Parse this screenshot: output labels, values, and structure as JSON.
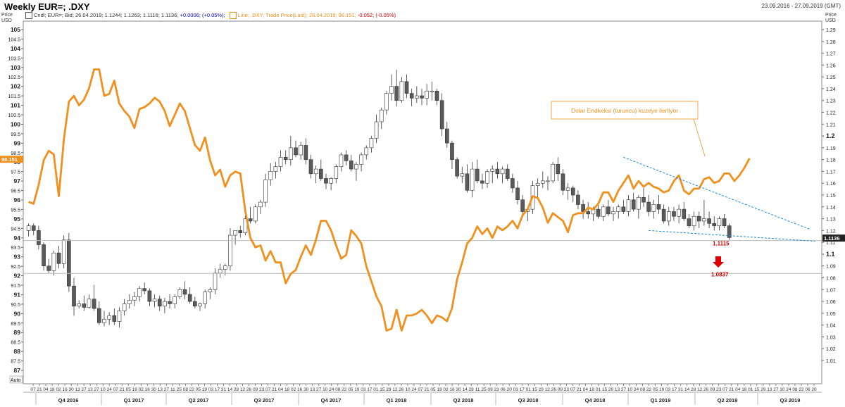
{
  "header": {
    "title": "Weekly EUR=; .DXY",
    "date_range": "23.09.2016 - 27.09.2019 (GMT)"
  },
  "legend": {
    "cndl_label": "Cndl; EUR=; Bid; 26.04.2019; 1.1244; 1.1263; 1.1116; 1.1136;",
    "cndl_change": "+0.0006; (+0.05%);",
    "line_label": "Line; .DXY; Trade Price(Last); 26.04.2019; 98.151;",
    "line_change": "-0.052; (-0.05%)"
  },
  "colors": {
    "dxy_line": "#f0901e",
    "trend_line": "#1c8ad8",
    "bear_candle": "#5a5a5a",
    "target_text": "#cc0000",
    "annotation_text": "#f0901e"
  },
  "chart_data": {
    "type": "candlestick",
    "left_axis": {
      "label": "Price\nUSD",
      "range": [
        86.5,
        105.5
      ],
      "ticks": [
        "87",
        "87.5",
        "88",
        "88.5",
        "89",
        "89.5",
        "90",
        "90.5",
        "91",
        "91.5",
        "92",
        "92.5",
        "93",
        "93.5",
        "94",
        "94.5",
        "95",
        "95.5",
        "96",
        "96.5",
        "97",
        "97.5",
        "98",
        "98.5",
        "99",
        "99.5",
        "100",
        "100.5",
        "101",
        "101.5",
        "102",
        "102.5",
        "103",
        "103.5",
        "104",
        "104.5",
        "105"
      ],
      "current_value_label": "98.151"
    },
    "right_axis": {
      "label": "Price\nUSD",
      "range": [
        0.995,
        1.294
      ],
      "ticks": [
        "1.01",
        "1.02",
        "1.03",
        "1.04",
        "1.05",
        "1.06",
        "1.07",
        "1.08",
        "1.09",
        "1.1",
        "1.11",
        "1.12",
        "1.13",
        "1.14",
        "1.15",
        "1.16",
        "1.17",
        "1.18",
        "1.19",
        "1.2",
        "1.21",
        "1.22",
        "1.23",
        "1.24",
        "1.25",
        "1.26",
        "1.27",
        "1.28",
        "1.29"
      ],
      "current_value_label": "1.1136"
    },
    "x_axis": {
      "day_ticks": [
        "07",
        "21",
        "04",
        "18",
        "02",
        "16",
        "30",
        "13",
        "27",
        "13",
        "27",
        "10",
        "24",
        "07",
        "21",
        "05",
        "19",
        "02",
        "16",
        "30",
        "13",
        "27",
        "11",
        "25",
        "08",
        "22",
        "05",
        "19",
        "03",
        "17",
        "31",
        "14",
        "28",
        "12",
        "26",
        "09",
        "23",
        "07",
        "21",
        "04",
        "18",
        "02",
        "16",
        "30",
        "13",
        "27",
        "10",
        "24",
        "08",
        "22",
        "05",
        "19",
        "03",
        "17",
        "01",
        "15",
        "29",
        "12",
        "26",
        "10",
        "24",
        "07",
        "21",
        "05",
        "19",
        "02",
        "16",
        "30",
        "14",
        "28",
        "11",
        "25",
        "09",
        "23",
        "06",
        "20",
        "03",
        "17",
        "01",
        "15",
        "29",
        "12",
        "26",
        "09",
        "23",
        "07",
        "21",
        "04",
        "18",
        "01",
        "15",
        "29",
        "13",
        "27",
        "10",
        "24",
        "08",
        "22",
        "05",
        "19",
        "03",
        "17",
        "31",
        "14",
        "28",
        "12",
        "26",
        "09",
        "23",
        "07",
        "21",
        "04",
        "18",
        "01",
        "15",
        "29",
        "13",
        "27",
        "10",
        "24",
        "08",
        "22",
        "06",
        "20"
      ],
      "quarters": [
        "Q4 2016",
        "Q1 2017",
        "Q2 2017",
        "Q3 2017",
        "Q4 2017",
        "Q1 2018",
        "Q2 2018",
        "Q3 2018",
        "Q4 2018",
        "Q1 2019",
        "Q2 2019",
        "Q3 2019"
      ]
    },
    "dxy_series": [
      95.9,
      95.8,
      96.8,
      98.1,
      98.6,
      98.4,
      96.2,
      99.2,
      101.2,
      101.5,
      101.0,
      101.3,
      101.9,
      102.9,
      102.9,
      101.5,
      101.6,
      102.3,
      101.1,
      100.7,
      100.4,
      99.8,
      100.8,
      100.9,
      101.1,
      101.4,
      101.2,
      100.7,
      99.9,
      100.5,
      101.1,
      100.7,
      99.8,
      98.9,
      98.6,
      99.3,
      98.1,
      97.3,
      97.6,
      96.7,
      97.3,
      97.5,
      97.4,
      95.4,
      94.0,
      93.5,
      93.6,
      92.8,
      93.3,
      92.7,
      92.7,
      91.6,
      92.1,
      92.3,
      93.0,
      93.6,
      93.1,
      93.9,
      94.9,
      94.9,
      94.4,
      93.6,
      92.9,
      93.1,
      94.4,
      94.1,
      93.7,
      92.5,
      91.7,
      90.9,
      90.4,
      89.1,
      89.2,
      90.2,
      89.1,
      89.9,
      89.9,
      90.0,
      90.2,
      89.9,
      89.5,
      89.9,
      89.8,
      89.6,
      90.3,
      91.8,
      92.7,
      93.7,
      94.0,
      94.6,
      94.2,
      94.5,
      94.0,
      94.6,
      94.4,
      94.6,
      94.9,
      94.5,
      95.2,
      95.5,
      96.2,
      96.1,
      95.6,
      94.8,
      95.3,
      95.1,
      94.9,
      94.3,
      95.2,
      95.3,
      95.3,
      95.6,
      95.5,
      95.8,
      96.4,
      96.4,
      95.9,
      96.5,
      96.9,
      97.3,
      96.6,
      97.0,
      96.7,
      96.9,
      96.7,
      96.6,
      96.4,
      96.5,
      97.0,
      97.3,
      96.5,
      96.3,
      96.6,
      96.6,
      97.1,
      97.2,
      96.9,
      97.0,
      97.4,
      97.4,
      97.0,
      97.3,
      97.7,
      98.2
    ],
    "eurusd_candles": [
      [
        1.12,
        1.126,
        1.115,
        1.124
      ],
      [
        1.124,
        1.126,
        1.116,
        1.12
      ],
      [
        1.12,
        1.124,
        1.104,
        1.108
      ],
      [
        1.108,
        1.11,
        1.086,
        1.09
      ],
      [
        1.09,
        1.096,
        1.084,
        1.086
      ],
      [
        1.086,
        1.103,
        1.082,
        1.101
      ],
      [
        1.101,
        1.107,
        1.088,
        1.092
      ],
      [
        1.092,
        1.116,
        1.088,
        1.112
      ],
      [
        1.112,
        1.118,
        1.068,
        1.073
      ],
      [
        1.073,
        1.08,
        1.048,
        1.056
      ],
      [
        1.056,
        1.061,
        1.054,
        1.058
      ],
      [
        1.058,
        1.065,
        1.052,
        1.055
      ],
      [
        1.055,
        1.066,
        1.054,
        1.062
      ],
      [
        1.062,
        1.074,
        1.052,
        1.054
      ],
      [
        1.054,
        1.06,
        1.04,
        1.042
      ],
      [
        1.042,
        1.052,
        1.039,
        1.045
      ],
      [
        1.045,
        1.051,
        1.04,
        1.048
      ],
      [
        1.048,
        1.054,
        1.04,
        1.043
      ],
      [
        1.043,
        1.055,
        1.038,
        1.052
      ],
      [
        1.052,
        1.062,
        1.048,
        1.058
      ],
      [
        1.058,
        1.066,
        1.054,
        1.061
      ],
      [
        1.061,
        1.068,
        1.056,
        1.064
      ],
      [
        1.064,
        1.073,
        1.06,
        1.071
      ],
      [
        1.071,
        1.076,
        1.066,
        1.069
      ],
      [
        1.069,
        1.071,
        1.056,
        1.06
      ],
      [
        1.06,
        1.066,
        1.055,
        1.062
      ],
      [
        1.062,
        1.065,
        1.052,
        1.056
      ],
      [
        1.056,
        1.063,
        1.05,
        1.06
      ],
      [
        1.06,
        1.066,
        1.054,
        1.058
      ],
      [
        1.058,
        1.066,
        1.054,
        1.064
      ],
      [
        1.064,
        1.072,
        1.062,
        1.07
      ],
      [
        1.07,
        1.077,
        1.062,
        1.066
      ],
      [
        1.066,
        1.072,
        1.058,
        1.06
      ],
      [
        1.06,
        1.064,
        1.054,
        1.056
      ],
      [
        1.056,
        1.059,
        1.052,
        1.058
      ],
      [
        1.058,
        1.07,
        1.054,
        1.068
      ],
      [
        1.068,
        1.072,
        1.062,
        1.07
      ],
      [
        1.07,
        1.088,
        1.066,
        1.084
      ],
      [
        1.084,
        1.092,
        1.08,
        1.087
      ],
      [
        1.087,
        1.092,
        1.082,
        1.09
      ],
      [
        1.09,
        1.122,
        1.086,
        1.116
      ],
      [
        1.116,
        1.12,
        1.108,
        1.12
      ],
      [
        1.12,
        1.124,
        1.114,
        1.118
      ],
      [
        1.118,
        1.135,
        1.116,
        1.13
      ],
      [
        1.13,
        1.14,
        1.126,
        1.128
      ],
      [
        1.128,
        1.142,
        1.126,
        1.14
      ],
      [
        1.14,
        1.146,
        1.134,
        1.144
      ],
      [
        1.144,
        1.168,
        1.14,
        1.163
      ],
      [
        1.163,
        1.177,
        1.158,
        1.17
      ],
      [
        1.17,
        1.178,
        1.164,
        1.174
      ],
      [
        1.174,
        1.188,
        1.17,
        1.182
      ],
      [
        1.182,
        1.188,
        1.176,
        1.18
      ],
      [
        1.18,
        1.2,
        1.175,
        1.19
      ],
      [
        1.19,
        1.196,
        1.182,
        1.184
      ],
      [
        1.184,
        1.195,
        1.18,
        1.192
      ],
      [
        1.192,
        1.198,
        1.176,
        1.18
      ],
      [
        1.18,
        1.184,
        1.164,
        1.168
      ],
      [
        1.168,
        1.175,
        1.16,
        1.172
      ],
      [
        1.172,
        1.18,
        1.162,
        1.164
      ],
      [
        1.164,
        1.168,
        1.155,
        1.16
      ],
      [
        1.16,
        1.165,
        1.154,
        1.164
      ],
      [
        1.164,
        1.176,
        1.16,
        1.174
      ],
      [
        1.174,
        1.186,
        1.17,
        1.184
      ],
      [
        1.184,
        1.188,
        1.175,
        1.179
      ],
      [
        1.179,
        1.184,
        1.17,
        1.172
      ],
      [
        1.172,
        1.178,
        1.162,
        1.176
      ],
      [
        1.176,
        1.186,
        1.17,
        1.184
      ],
      [
        1.184,
        1.192,
        1.18,
        1.19
      ],
      [
        1.19,
        1.2,
        1.186,
        1.198
      ],
      [
        1.198,
        1.218,
        1.194,
        1.212
      ],
      [
        1.212,
        1.224,
        1.206,
        1.222
      ],
      [
        1.222,
        1.238,
        1.218,
        1.236
      ],
      [
        1.236,
        1.252,
        1.23,
        1.242
      ],
      [
        1.242,
        1.256,
        1.225,
        1.23
      ],
      [
        1.23,
        1.25,
        1.228,
        1.246
      ],
      [
        1.246,
        1.252,
        1.232,
        1.236
      ],
      [
        1.236,
        1.24,
        1.225,
        1.232
      ],
      [
        1.232,
        1.242,
        1.228,
        1.234
      ],
      [
        1.234,
        1.24,
        1.226,
        1.232
      ],
      [
        1.232,
        1.244,
        1.226,
        1.238
      ],
      [
        1.238,
        1.246,
        1.23,
        1.238
      ],
      [
        1.238,
        1.24,
        1.226,
        1.23
      ],
      [
        1.23,
        1.236,
        1.2,
        1.206
      ],
      [
        1.206,
        1.212,
        1.19,
        1.194
      ],
      [
        1.194,
        1.196,
        1.172,
        1.18
      ],
      [
        1.18,
        1.182,
        1.164,
        1.166
      ],
      [
        1.166,
        1.174,
        1.16,
        1.168
      ],
      [
        1.168,
        1.176,
        1.152,
        1.154
      ],
      [
        1.154,
        1.178,
        1.148,
        1.172
      ],
      [
        1.172,
        1.18,
        1.16,
        1.162
      ],
      [
        1.162,
        1.168,
        1.155,
        1.16
      ],
      [
        1.16,
        1.172,
        1.156,
        1.17
      ],
      [
        1.17,
        1.175,
        1.16,
        1.172
      ],
      [
        1.172,
        1.178,
        1.164,
        1.168
      ],
      [
        1.168,
        1.174,
        1.16,
        1.172
      ],
      [
        1.172,
        1.176,
        1.162,
        1.164
      ],
      [
        1.164,
        1.168,
        1.152,
        1.156
      ],
      [
        1.156,
        1.162,
        1.142,
        1.146
      ],
      [
        1.146,
        1.15,
        1.132,
        1.136
      ],
      [
        1.136,
        1.14,
        1.128,
        1.138
      ],
      [
        1.138,
        1.162,
        1.134,
        1.158
      ],
      [
        1.158,
        1.164,
        1.148,
        1.16
      ],
      [
        1.16,
        1.17,
        1.156,
        1.162
      ],
      [
        1.162,
        1.166,
        1.154,
        1.162
      ],
      [
        1.162,
        1.178,
        1.16,
        1.176
      ],
      [
        1.176,
        1.182,
        1.162,
        1.168
      ],
      [
        1.168,
        1.172,
        1.15,
        1.154
      ],
      [
        1.154,
        1.16,
        1.146,
        1.156
      ],
      [
        1.156,
        1.158,
        1.144,
        1.15
      ],
      [
        1.15,
        1.154,
        1.138,
        1.142
      ],
      [
        1.142,
        1.146,
        1.13,
        1.136
      ],
      [
        1.136,
        1.144,
        1.13,
        1.134
      ],
      [
        1.134,
        1.14,
        1.128,
        1.138
      ],
      [
        1.138,
        1.144,
        1.13,
        1.132
      ],
      [
        1.132,
        1.142,
        1.128,
        1.14
      ],
      [
        1.14,
        1.146,
        1.132,
        1.134
      ],
      [
        1.134,
        1.14,
        1.128,
        1.136
      ],
      [
        1.136,
        1.142,
        1.13,
        1.14
      ],
      [
        1.14,
        1.146,
        1.134,
        1.136
      ],
      [
        1.136,
        1.15,
        1.132,
        1.146
      ],
      [
        1.146,
        1.152,
        1.136,
        1.138
      ],
      [
        1.138,
        1.15,
        1.13,
        1.148
      ],
      [
        1.148,
        1.156,
        1.14,
        1.144
      ],
      [
        1.144,
        1.15,
        1.132,
        1.136
      ],
      [
        1.136,
        1.146,
        1.13,
        1.142
      ],
      [
        1.142,
        1.15,
        1.134,
        1.138
      ],
      [
        1.138,
        1.142,
        1.126,
        1.128
      ],
      [
        1.128,
        1.14,
        1.124,
        1.136
      ],
      [
        1.136,
        1.14,
        1.128,
        1.132
      ],
      [
        1.132,
        1.142,
        1.126,
        1.138
      ],
      [
        1.138,
        1.144,
        1.128,
        1.13
      ],
      [
        1.13,
        1.134,
        1.122,
        1.124
      ],
      [
        1.124,
        1.136,
        1.12,
        1.132
      ],
      [
        1.132,
        1.136,
        1.122,
        1.128
      ],
      [
        1.128,
        1.146,
        1.124,
        1.13
      ],
      [
        1.13,
        1.136,
        1.122,
        1.126
      ],
      [
        1.126,
        1.132,
        1.12,
        1.124
      ],
      [
        1.124,
        1.132,
        1.12,
        1.13
      ],
      [
        1.13,
        1.134,
        1.122,
        1.124
      ],
      [
        1.124,
        1.126,
        1.112,
        1.114
      ]
    ],
    "annotations": {
      "text": "Dolar Endkeksi (turuncu) kuzeye ilerliyor",
      "level_1": "1.1115",
      "level_2": "1.0837",
      "level_1_value": 1.1115,
      "level_2_value": 1.0837,
      "upper_trend": [
        [
          1.182,
          1.121
        ]
      ],
      "lower_trend": [
        [
          1.12,
          1.111
        ]
      ]
    },
    "auto_label": "Auto"
  }
}
